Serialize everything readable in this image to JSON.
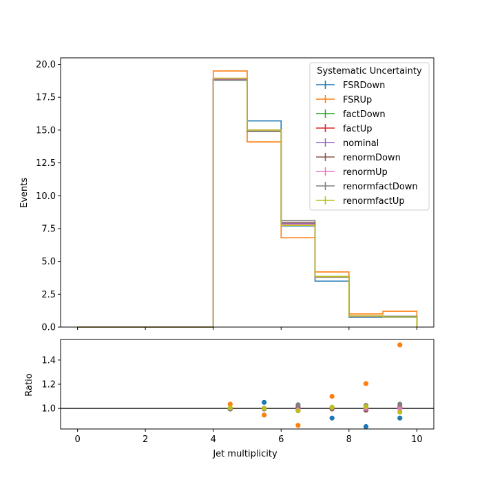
{
  "chart_data": [
    {
      "type": "line",
      "style": "step-histogram",
      "ylabel": "Events",
      "xlim": [
        -0.5,
        10.5
      ],
      "ylim": [
        0,
        20.5
      ],
      "yticks": [
        "0.0",
        "2.5",
        "5.0",
        "7.5",
        "10.0",
        "12.5",
        "15.0",
        "17.5",
        "20.0"
      ],
      "yticks_values": [
        0,
        2.5,
        5,
        7.5,
        10,
        12.5,
        15,
        17.5,
        20
      ],
      "xticks_values": [
        0,
        2,
        4,
        6,
        8,
        10
      ],
      "bin_edges": [
        0,
        1,
        2,
        3,
        4,
        5,
        6,
        7,
        8,
        9,
        10
      ],
      "legend": {
        "title": "Systematic Uncertainty",
        "position": "upper right"
      },
      "series": [
        {
          "name": "FSRDown",
          "color": "#1f77b4",
          "values": [
            0,
            0,
            0,
            0,
            18.8,
            15.7,
            7.7,
            3.5,
            0.75,
            0.75
          ]
        },
        {
          "name": "FSRUp",
          "color": "#ff7f0e",
          "values": [
            0,
            0,
            0,
            0,
            19.5,
            14.1,
            6.8,
            4.2,
            1.0,
            1.2
          ]
        },
        {
          "name": "factDown",
          "color": "#2ca02c",
          "values": [
            0,
            0,
            0,
            0,
            18.85,
            14.9,
            7.8,
            3.85,
            0.83,
            0.8
          ]
        },
        {
          "name": "factUp",
          "color": "#d62728",
          "values": [
            0,
            0,
            0,
            0,
            18.9,
            15.0,
            7.9,
            3.8,
            0.82,
            0.79
          ]
        },
        {
          "name": "nominal",
          "color": "#9467bd",
          "values": [
            0,
            0,
            0,
            0,
            18.9,
            14.95,
            7.9,
            3.8,
            0.83,
            0.79
          ]
        },
        {
          "name": "renormDown",
          "color": "#8c564b",
          "values": [
            0,
            0,
            0,
            0,
            18.85,
            14.9,
            7.95,
            3.8,
            0.82,
            0.8
          ]
        },
        {
          "name": "renormUp",
          "color": "#e377c2",
          "values": [
            0,
            0,
            0,
            0,
            18.9,
            14.95,
            7.8,
            3.82,
            0.83,
            0.79
          ]
        },
        {
          "name": "renormfactDown",
          "color": "#7f7f7f",
          "values": [
            0,
            0,
            0,
            0,
            18.8,
            14.9,
            8.1,
            3.82,
            0.85,
            0.82
          ]
        },
        {
          "name": "renormfactUp",
          "color": "#bcbd22",
          "values": [
            0,
            0,
            0,
            0,
            18.95,
            15.0,
            7.75,
            3.85,
            0.84,
            0.77
          ]
        }
      ]
    },
    {
      "type": "scatter",
      "xlabel": "Jet multiplicity",
      "ylabel": "Ratio",
      "xlim": [
        -0.5,
        10.5
      ],
      "ylim": [
        0.83,
        1.57
      ],
      "xticks": [
        "0",
        "2",
        "4",
        "6",
        "8",
        "10"
      ],
      "xticks_values": [
        0,
        2,
        4,
        6,
        8,
        10
      ],
      "yticks": [
        "1.0",
        "1.2",
        "1.4"
      ],
      "yticks_values": [
        1.0,
        1.2,
        1.4
      ],
      "reference_line": 1.0,
      "x": [
        4.5,
        5.5,
        6.5,
        7.5,
        8.5,
        9.5
      ],
      "series": [
        {
          "name": "FSRDown",
          "color": "#1f77b4",
          "values": [
            0.995,
            1.05,
            0.99,
            0.92,
            0.85,
            0.92
          ]
        },
        {
          "name": "FSRUp",
          "color": "#ff7f0e",
          "values": [
            1.035,
            0.945,
            0.86,
            1.1,
            1.205,
            1.525
          ]
        },
        {
          "name": "factDown",
          "color": "#2ca02c",
          "values": [
            1.0,
            1.0,
            0.99,
            1.01,
            1.01,
            1.01
          ]
        },
        {
          "name": "factUp",
          "color": "#d62728",
          "values": [
            1.0,
            1.0,
            1.0,
            1.0,
            0.99,
            1.0
          ]
        },
        {
          "name": "nominal",
          "color": "#9467bd",
          "values": [
            1.0,
            1.0,
            1.0,
            1.0,
            1.0,
            1.0
          ]
        },
        {
          "name": "renormDown",
          "color": "#8c564b",
          "values": [
            0.995,
            0.995,
            1.01,
            0.995,
            0.985,
            1.01
          ]
        },
        {
          "name": "renormUp",
          "color": "#e377c2",
          "values": [
            1.0,
            1.0,
            0.99,
            1.005,
            1.0,
            1.0
          ]
        },
        {
          "name": "renormfactDown",
          "color": "#7f7f7f",
          "values": [
            0.995,
            0.995,
            1.03,
            1.005,
            1.025,
            1.035
          ]
        },
        {
          "name": "renormfactUp",
          "color": "#bcbd22",
          "values": [
            1.005,
            1.0,
            0.98,
            1.01,
            1.015,
            0.97
          ]
        }
      ]
    }
  ]
}
